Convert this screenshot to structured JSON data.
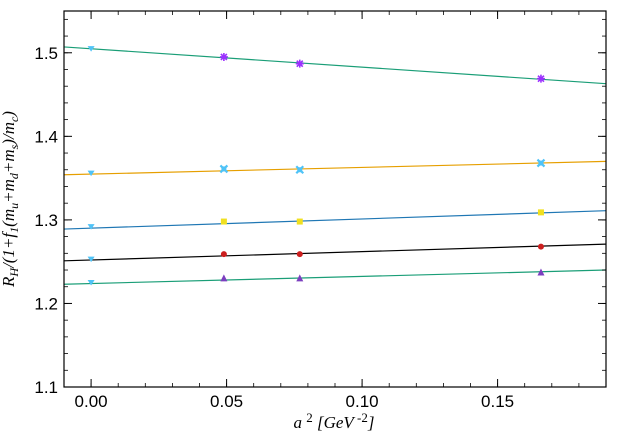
{
  "chart_data": {
    "type": "scatter",
    "title": "",
    "xlabel": "a^2 [GeV^-2]",
    "ylabel": "R_H/(1+f_1(m_u+m_d+m_s)/m_c)",
    "xlim": [
      -0.01,
      0.19
    ],
    "ylim": [
      1.1,
      1.55
    ],
    "xticks": [
      0.0,
      0.05,
      0.1,
      0.15
    ],
    "xtick_labels": [
      "0.00",
      "0.05",
      "0.10",
      "0.15"
    ],
    "yticks": [
      1.1,
      1.2,
      1.3,
      1.4,
      1.5
    ],
    "ytick_labels": [
      "1.1",
      "1.2",
      "1.3",
      "1.4",
      "1.5"
    ],
    "grid": false,
    "series": [
      {
        "color": "#1a9e77",
        "marker": "star",
        "x": [
          0.049,
          0.077,
          0.166
        ],
        "y": [
          1.495,
          1.487,
          1.469
        ],
        "extrapolated": {
          "x": 0.0,
          "y": 1.505
        },
        "fit": {
          "x0": -0.01,
          "y0": 1.507,
          "x1": 0.19,
          "y1": 1.463
        }
      },
      {
        "color": "#e69f00",
        "marker": "cross",
        "x": [
          0.049,
          0.077,
          0.166
        ],
        "y": [
          1.361,
          1.36,
          1.368
        ],
        "extrapolated": {
          "x": 0.0,
          "y": 1.356
        },
        "fit": {
          "x0": -0.01,
          "y0": 1.354,
          "x1": 0.19,
          "y1": 1.37
        }
      },
      {
        "color": "#1f77b4",
        "marker": "square",
        "x": [
          0.049,
          0.077,
          0.166
        ],
        "y": [
          1.298,
          1.298,
          1.309
        ],
        "extrapolated": {
          "x": 0.0,
          "y": 1.292
        },
        "fit": {
          "x0": -0.01,
          "y0": 1.289,
          "x1": 0.19,
          "y1": 1.311
        }
      },
      {
        "color": "#000000",
        "marker": "circle",
        "x": [
          0.049,
          0.077,
          0.166
        ],
        "y": [
          1.259,
          1.259,
          1.268
        ],
        "extrapolated": {
          "x": 0.0,
          "y": 1.253
        },
        "fit": {
          "x0": -0.01,
          "y0": 1.251,
          "x1": 0.19,
          "y1": 1.271
        }
      },
      {
        "color": "#1a9e77",
        "marker": "triangle",
        "x": [
          0.049,
          0.077,
          0.166
        ],
        "y": [
          1.23,
          1.23,
          1.237
        ],
        "extrapolated": {
          "x": 0.0,
          "y": 1.225
        },
        "fit": {
          "x0": -0.01,
          "y0": 1.223,
          "x1": 0.19,
          "y1": 1.24
        }
      }
    ],
    "marker_colors": {
      "star": "#9b30ff",
      "cross": "#4fc3f7",
      "square": "#f0e020",
      "circle": "#cc1f1f",
      "triangle": "#7b3fbf",
      "extrapolated": "#4fc3f7"
    }
  }
}
